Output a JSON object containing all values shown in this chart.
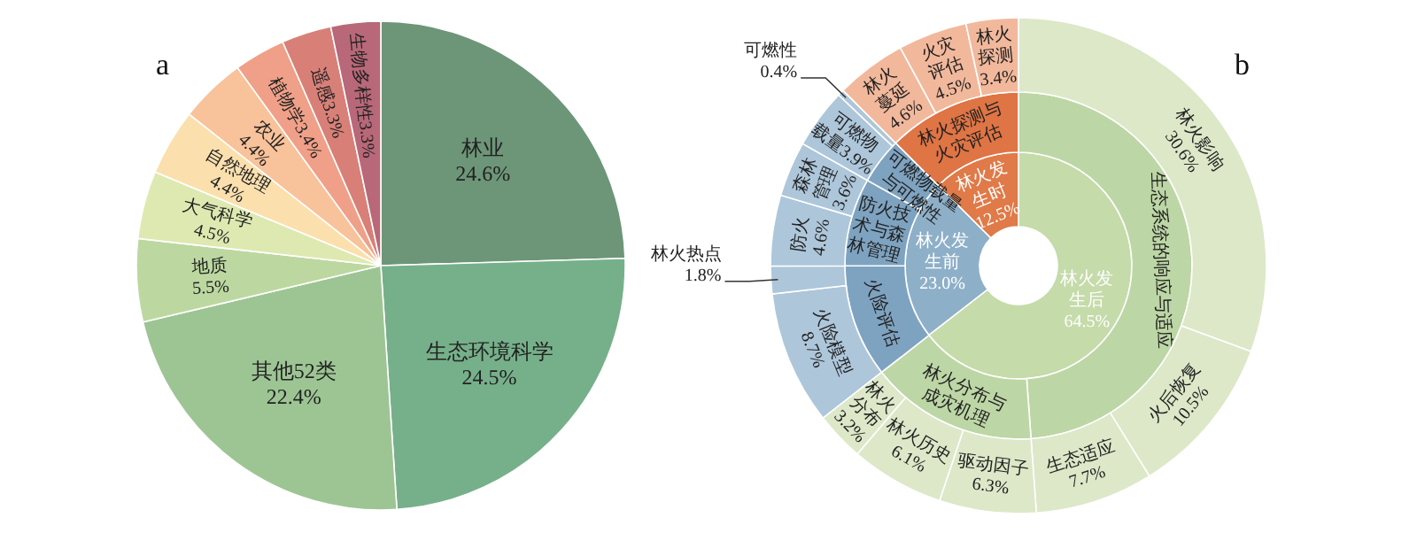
{
  "chart_data": [
    {
      "type": "pie",
      "title": "a",
      "categories": [
        "林业",
        "生态环境科学",
        "其他52类",
        "地质",
        "大气科学",
        "自然地理",
        "农业",
        "植物学",
        "遥感",
        "生物多样性"
      ],
      "values": [
        24.6,
        24.5,
        22.4,
        5.5,
        4.5,
        4.4,
        4.4,
        3.4,
        3.3,
        3.3
      ],
      "value_labels": [
        "24.6%",
        "24.5%",
        "22.4%",
        "5.5%",
        "4.5%",
        "4.4%",
        "4.4%",
        "3.4%",
        "3.3%",
        "3.3%"
      ],
      "colors": [
        "#6d9678",
        "#76b08a",
        "#9dc594",
        "#bcd8a0",
        "#dde9b0",
        "#fbe0ae",
        "#f8c29a",
        "#f0a088",
        "#d88078",
        "#b86878"
      ]
    },
    {
      "type": "donut",
      "title": "b",
      "categories": [
        "林火发生后",
        "林火发生前",
        "林火发生时"
      ],
      "values": [
        64.5,
        23.0,
        12.5
      ],
      "value_labels": [
        "64.5%",
        "23.0%",
        "12.5%"
      ],
      "colors": [
        "#c5dbaa",
        "#8eafc8",
        "#e07a48"
      ]
    },
    {
      "type": "donut",
      "categories": [
        "生态系统的响应与适应",
        "林火分布与成灾机理",
        "火险评估",
        "防火技术与森林管理",
        "可燃物载量与可燃性",
        "林火探测与火灾评估"
      ],
      "values": [
        48.8,
        15.6,
        10.5,
        8.2,
        4.3,
        12.5
      ],
      "colors": [
        "#bdd6a5",
        "#bdd6a5",
        "#7ea3c0",
        "#7ea3c0",
        "#7ea3c0",
        "#df7444"
      ]
    },
    {
      "type": "donut",
      "categories": [
        "林火影响",
        "火后恢复",
        "生态适应",
        "驱动因子",
        "林火历史",
        "林火分布",
        "火险模型",
        "林火热点",
        "防火",
        "森林管理",
        "可燃物载量",
        "可燃性",
        "林火蔓延",
        "火灾评估",
        "林火探测"
      ],
      "values": [
        30.6,
        10.5,
        7.7,
        6.3,
        6.1,
        3.2,
        8.7,
        1.8,
        4.6,
        3.6,
        3.9,
        0.4,
        4.6,
        4.5,
        3.4
      ],
      "value_labels": [
        "30.6%",
        "10.5%",
        "7.7%",
        "6.3%",
        "6.1%",
        "3.2%",
        "8.7%",
        "1.8%",
        "4.6%",
        "3.6%",
        "3.9%",
        "0.4%",
        "4.6%",
        "4.5%",
        "3.4%"
      ],
      "colors": [
        "#dce8c8",
        "#dce8c8",
        "#dce8c8",
        "#dce8c8",
        "#dce8c8",
        "#dce8c8",
        "#adc6da",
        "#adc6da",
        "#adc6da",
        "#adc6da",
        "#adc6da",
        "#adc6da",
        "#f2b89c",
        "#f2b89c",
        "#f2b89c"
      ]
    }
  ]
}
